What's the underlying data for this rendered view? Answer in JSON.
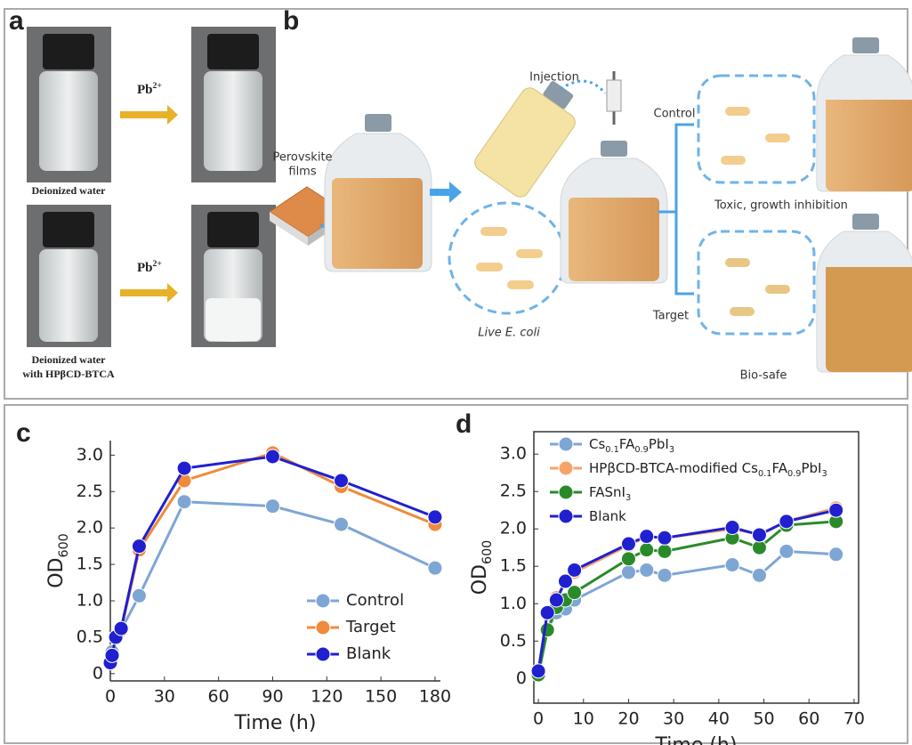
{
  "panel_a": {
    "label": "a",
    "arrow_labels": [
      "Pb2+",
      "Pb2+"
    ],
    "captions": [
      [
        "Deionized water"
      ],
      [
        "Deionized water",
        "with HPβCD-BTCA"
      ]
    ]
  },
  "panel_b": {
    "label": "b",
    "films": [
      "Perovskite",
      "films"
    ],
    "injection": "Injection",
    "live": "Live E. coli",
    "control": "Control",
    "target": "Target",
    "toxic": "Toxic, growth inhibition",
    "biosafe": "Bio-safe"
  },
  "chart_data": [
    {
      "type": "line",
      "panel_label": "c",
      "xlabel": "Time (h)",
      "ylabel": "OD600",
      "x": [
        0,
        1,
        3,
        6,
        16,
        41,
        90,
        128,
        180
      ],
      "xlim": [
        0,
        183
      ],
      "xticks": [
        0,
        30,
        60,
        90,
        120,
        150,
        180
      ],
      "ylim": [
        -0.1,
        3.2
      ],
      "yticks": [
        0,
        0.5,
        {
          "value": 1,
          "label": "1.0"
        },
        1.5,
        {
          "value": 2,
          "label": "2.0"
        },
        2.5,
        {
          "value": 3,
          "label": "3.0"
        }
      ],
      "frame": false,
      "legend": "lower right",
      "series": [
        {
          "name": "Control",
          "color": "#7ea6d4",
          "values": [
            0.15,
            0.3,
            0.5,
            0.6,
            1.07,
            2.36,
            2.3,
            2.05,
            1.45
          ]
        },
        {
          "name": "Target",
          "color": "#f08a3c",
          "values": [
            0.15,
            0.25,
            0.5,
            0.6,
            1.7,
            2.65,
            3.03,
            2.57,
            2.05
          ]
        },
        {
          "name": "Blank",
          "color": "#2020d0",
          "values": [
            0.15,
            0.25,
            0.5,
            0.62,
            1.75,
            2.82,
            2.98,
            2.65,
            2.15
          ]
        }
      ]
    },
    {
      "type": "line",
      "panel_label": "d",
      "xlabel": "Time (h)",
      "ylabel": "OD600",
      "x": [
        0,
        2,
        4,
        6,
        8,
        20,
        24,
        28,
        43,
        49,
        55,
        66
      ],
      "xlim": [
        -1,
        71
      ],
      "xticks": [
        0,
        10,
        20,
        30,
        40,
        50,
        60,
        70
      ],
      "ylim": [
        -0.33,
        3.3
      ],
      "yticks": [
        0,
        0.5,
        {
          "value": 1,
          "label": "1.0"
        },
        1.5,
        {
          "value": 2,
          "label": "2.0"
        },
        2.5,
        {
          "value": 3,
          "label": "3.0"
        }
      ],
      "frame": true,
      "legend": "upper left",
      "series": [
        {
          "name": "Cs0.1FA0.9PbI3",
          "color": "#7ea6d4",
          "values": [
            0.05,
            0.65,
            0.88,
            0.93,
            1.05,
            1.42,
            1.45,
            1.38,
            1.52,
            1.38,
            1.7,
            1.66
          ]
        },
        {
          "name": "HPβCD-BTCA-modified Cs0.1FA0.9PbI3",
          "color": "#f4a46a",
          "values": [
            0.1,
            0.88,
            1.08,
            1.3,
            1.42,
            1.78,
            1.9,
            1.88,
            2.0,
            1.93,
            2.1,
            2.28
          ]
        },
        {
          "name": "FASnI3",
          "color": "#2a8a2a",
          "values": [
            0.05,
            0.65,
            0.95,
            1.05,
            1.15,
            1.6,
            1.72,
            1.7,
            1.88,
            1.75,
            2.05,
            2.1
          ]
        },
        {
          "name": "Blank",
          "color": "#2020d0",
          "values": [
            0.1,
            0.88,
            1.05,
            1.3,
            1.45,
            1.8,
            1.9,
            1.88,
            2.02,
            1.92,
            2.1,
            2.25
          ]
        }
      ]
    }
  ]
}
